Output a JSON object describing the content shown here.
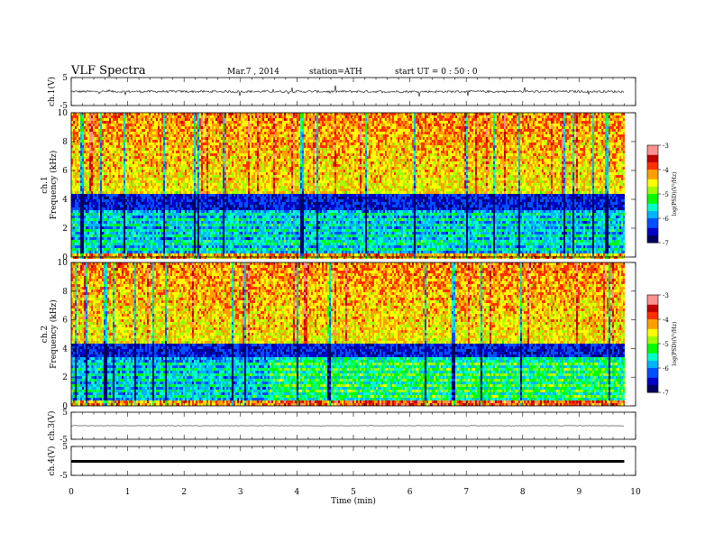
{
  "header": {
    "title": "VLF  Spectra",
    "date": "Mar.7   , 2014",
    "station": "station=ATH",
    "start": "start  UT  =    0 : 50 : 0"
  },
  "chart_data": [
    {
      "type": "line",
      "title": "",
      "ylabel": "ch.1(V)",
      "ylim": [
        -5,
        5
      ],
      "yticks": [
        "5",
        "-5"
      ],
      "description_values": {
        "baseline": 0,
        "noise_amplitude": 1.5
      },
      "xlim": [
        0,
        10
      ]
    },
    {
      "type": "heatmap",
      "ylabel": "ch.1\nFrequency  (kHz)",
      "ylim": [
        0,
        10
      ],
      "yticks": [
        "0",
        "2",
        "4",
        "6",
        "8",
        "10"
      ],
      "xlim": [
        0,
        10
      ],
      "data_end_min": 9.8,
      "colorbar": {
        "label": "log(PSD)(V²/Hz)",
        "ticks": [
          "-3",
          "-4",
          "-5",
          "-6",
          "-7"
        ],
        "range": [
          -7,
          -3
        ]
      }
    },
    {
      "type": "heatmap",
      "ylabel": "ch.2\nFrequency  (kHz)",
      "ylim": [
        0,
        10
      ],
      "yticks": [
        "0",
        "2",
        "4",
        "6",
        "8",
        "10"
      ],
      "xlim": [
        0,
        10
      ],
      "data_end_min": 9.8,
      "colorbar": {
        "label": "log(PSD)(V²/Hz)",
        "ticks": [
          "-3",
          "-4",
          "-5",
          "-6",
          "-7"
        ],
        "range": [
          -7,
          -3
        ]
      }
    },
    {
      "type": "line",
      "ylabel": "ch.3(V)",
      "ylim": [
        -5,
        5
      ],
      "yticks": [
        "5",
        "-5"
      ],
      "xlim": [
        0,
        10
      ]
    },
    {
      "type": "line",
      "ylabel": "ch.4(V)",
      "ylim": [
        -5,
        5
      ],
      "yticks": [
        "5",
        "-5"
      ],
      "xlim": [
        0,
        10
      ]
    }
  ],
  "xaxis": {
    "label": "Time  (min)",
    "ticks": [
      "0",
      "1",
      "2",
      "3",
      "4",
      "5",
      "6",
      "7",
      "8",
      "9",
      "10"
    ]
  },
  "colors": {
    "trace": "#000000",
    "cmap": [
      "#000060",
      "#0000c8",
      "#0050ff",
      "#00b4ff",
      "#00ffc8",
      "#00ff00",
      "#a0ff00",
      "#ffff00",
      "#ffa000",
      "#ff3000",
      "#c00000",
      "#ff9090",
      "#ffffff"
    ]
  }
}
